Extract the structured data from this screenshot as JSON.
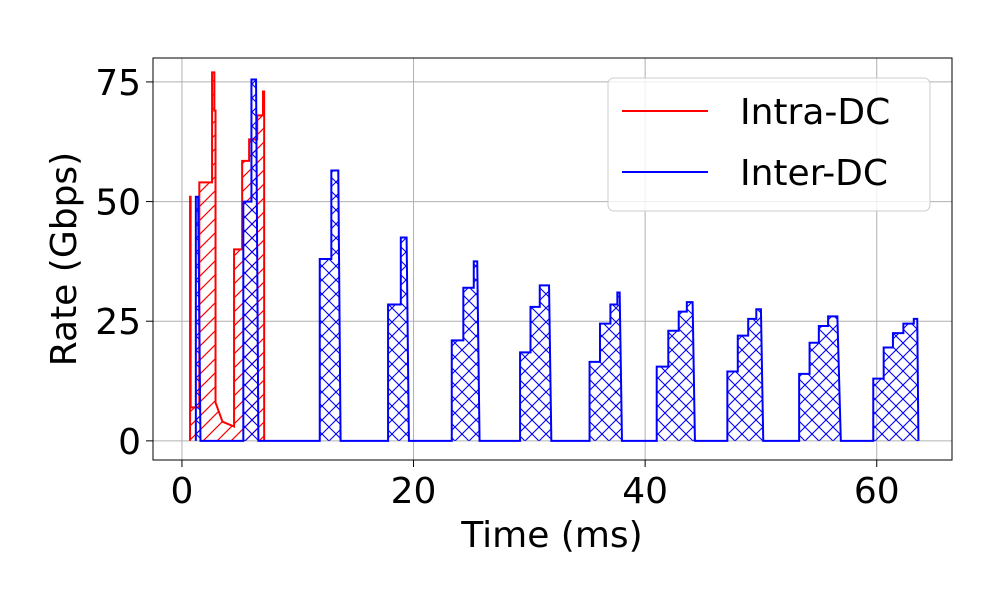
{
  "chart_data": {
    "type": "line",
    "title": "",
    "xlabel": "Time (ms)",
    "ylabel": "Rate (Gbps)",
    "xlim": [
      -2.5,
      66.5
    ],
    "ylim": [
      -4,
      80
    ],
    "xticks": [
      0,
      20,
      40,
      60
    ],
    "yticks": [
      0,
      25,
      50,
      75
    ],
    "grid": true,
    "legend_position": "top-right",
    "series": [
      {
        "name": "Intra-DC",
        "color": "#ff0000",
        "hatch": "diagonal",
        "points": [
          [
            0.7,
            0
          ],
          [
            0.7,
            51
          ],
          [
            0.75,
            51
          ],
          [
            0.75,
            7
          ],
          [
            1.5,
            7
          ],
          [
            1.5,
            54
          ],
          [
            2.6,
            54
          ],
          [
            2.6,
            77
          ],
          [
            2.8,
            77
          ],
          [
            2.8,
            69
          ],
          [
            2.9,
            69
          ],
          [
            2.9,
            8
          ],
          [
            3.5,
            4
          ],
          [
            4.5,
            3
          ],
          [
            4.5,
            40
          ],
          [
            5.2,
            40
          ],
          [
            5.2,
            58.5
          ],
          [
            5.8,
            58.5
          ],
          [
            5.8,
            63
          ],
          [
            6.5,
            63
          ],
          [
            6.5,
            68
          ],
          [
            7.0,
            68
          ],
          [
            7.0,
            73
          ],
          [
            7.1,
            73
          ],
          [
            7.1,
            0
          ]
        ]
      },
      {
        "name": "Inter-DC",
        "color": "#0000ff",
        "hatch": "cross",
        "points": [
          [
            1.2,
            0
          ],
          [
            1.2,
            51
          ],
          [
            1.4,
            51
          ],
          [
            1.6,
            0
          ],
          [
            5.3,
            0
          ],
          [
            5.3,
            50
          ],
          [
            6.0,
            50
          ],
          [
            6.0,
            75.5
          ],
          [
            6.4,
            75.5
          ],
          [
            6.6,
            0
          ],
          [
            11.9,
            0
          ],
          [
            11.9,
            38
          ],
          [
            12.9,
            38
          ],
          [
            12.9,
            56.5
          ],
          [
            13.5,
            56.5
          ],
          [
            13.7,
            0
          ],
          [
            17.8,
            0
          ],
          [
            17.8,
            28.5
          ],
          [
            18.9,
            28.5
          ],
          [
            18.9,
            42.5
          ],
          [
            19.4,
            42.5
          ],
          [
            19.6,
            0
          ],
          [
            23.3,
            0
          ],
          [
            23.3,
            21
          ],
          [
            24.3,
            21
          ],
          [
            24.3,
            32
          ],
          [
            25.2,
            32
          ],
          [
            25.2,
            37.5
          ],
          [
            25.5,
            37.5
          ],
          [
            25.7,
            0
          ],
          [
            29.2,
            0
          ],
          [
            29.2,
            18.5
          ],
          [
            30.1,
            18.5
          ],
          [
            30.1,
            28
          ],
          [
            30.9,
            28
          ],
          [
            30.9,
            32.5
          ],
          [
            31.7,
            32.5
          ],
          [
            31.9,
            0
          ],
          [
            35.2,
            0
          ],
          [
            35.2,
            16.5
          ],
          [
            36.1,
            16.5
          ],
          [
            36.1,
            24.5
          ],
          [
            37.0,
            24.5
          ],
          [
            37.0,
            28.5
          ],
          [
            37.6,
            28.5
          ],
          [
            37.6,
            31
          ],
          [
            37.8,
            31
          ],
          [
            38.0,
            0
          ],
          [
            41.0,
            0
          ],
          [
            41.0,
            15.5
          ],
          [
            42.0,
            15.5
          ],
          [
            42.0,
            23
          ],
          [
            42.9,
            23
          ],
          [
            42.9,
            27
          ],
          [
            43.6,
            27
          ],
          [
            43.6,
            29
          ],
          [
            44.1,
            29
          ],
          [
            44.3,
            0
          ],
          [
            47.1,
            0
          ],
          [
            47.1,
            14.5
          ],
          [
            48.0,
            14.5
          ],
          [
            48.0,
            22
          ],
          [
            48.9,
            22
          ],
          [
            48.9,
            25.5
          ],
          [
            49.6,
            25.5
          ],
          [
            49.6,
            27.5
          ],
          [
            50.0,
            27.5
          ],
          [
            50.2,
            0
          ],
          [
            53.3,
            0
          ],
          [
            53.3,
            14
          ],
          [
            54.2,
            14
          ],
          [
            54.2,
            20.5
          ],
          [
            55.0,
            20.5
          ],
          [
            55.0,
            24
          ],
          [
            55.8,
            24
          ],
          [
            55.8,
            26
          ],
          [
            56.6,
            26
          ],
          [
            56.9,
            0
          ],
          [
            59.7,
            0
          ],
          [
            59.7,
            13
          ],
          [
            60.6,
            13
          ],
          [
            60.6,
            19.5
          ],
          [
            61.4,
            19.5
          ],
          [
            61.4,
            22.5
          ],
          [
            62.3,
            22.5
          ],
          [
            62.3,
            24.5
          ],
          [
            63.2,
            24.5
          ],
          [
            63.2,
            25.5
          ],
          [
            63.5,
            25.5
          ],
          [
            63.6,
            0
          ]
        ]
      }
    ]
  }
}
